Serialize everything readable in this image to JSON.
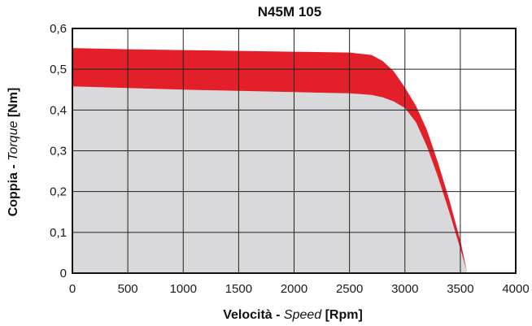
{
  "chart_data": {
    "type": "area",
    "title": "N45M 105",
    "xlabel": {
      "bold1": "Velocità - ",
      "italic": "Speed",
      "bold2": " [Rpm]"
    },
    "ylabel": {
      "bold1": "Coppia - ",
      "italic": "Torque",
      "bold2": " [Nm]"
    },
    "xlim": [
      0,
      4000
    ],
    "ylim": [
      0,
      0.6
    ],
    "xticks": [
      0,
      500,
      1000,
      1500,
      2000,
      2500,
      3000,
      3500,
      4000
    ],
    "xtick_labels": [
      "0",
      "500",
      "1000",
      "1500",
      "2000",
      "2500",
      "3000",
      "3500",
      "4000"
    ],
    "yticks": [
      0,
      0.1,
      0.2,
      0.3,
      0.4,
      0.5,
      0.6
    ],
    "ytick_labels": [
      "0",
      "0,1",
      "0,2",
      "0,3",
      "0,4",
      "0,5",
      "0,6"
    ],
    "grid": true,
    "series": [
      {
        "color": "#e3202a",
        "x": [
          0,
          500,
          1000,
          1500,
          2000,
          2500,
          2700,
          2800,
          2900,
          3000,
          3100,
          3200,
          3300,
          3400,
          3500,
          3560
        ],
        "y": [
          0.552,
          0.549,
          0.547,
          0.545,
          0.543,
          0.541,
          0.535,
          0.52,
          0.495,
          0.455,
          0.41,
          0.35,
          0.27,
          0.18,
          0.08,
          0.005
        ]
      },
      {
        "color": "#d9d9db",
        "x": [
          0,
          500,
          1000,
          1500,
          2000,
          2500,
          2700,
          2800,
          2900,
          3000,
          3100,
          3200,
          3300,
          3400,
          3500,
          3560
        ],
        "y": [
          0.458,
          0.454,
          0.45,
          0.447,
          0.444,
          0.441,
          0.437,
          0.431,
          0.421,
          0.405,
          0.37,
          0.31,
          0.235,
          0.15,
          0.06,
          0.005
        ]
      }
    ]
  }
}
